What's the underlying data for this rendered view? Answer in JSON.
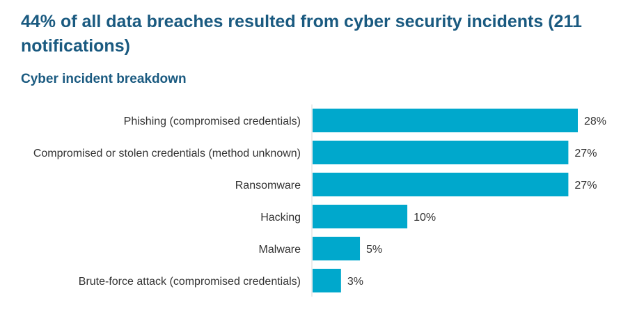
{
  "header": {
    "title": "44% of all data breaches resulted from cyber security incidents (211 notifications)",
    "subtitle": "Cyber incident breakdown"
  },
  "chart_data": {
    "type": "bar",
    "orientation": "horizontal",
    "categories": [
      "Phishing (compromised credentials)",
      "Compromised or stolen credentials (method unknown)",
      "Ransomware",
      "Hacking",
      "Malware",
      "Brute-force attack (compromised credentials)"
    ],
    "values": [
      28,
      27,
      27,
      10,
      5,
      3
    ],
    "value_labels": [
      "28%",
      "27%",
      "27%",
      "10%",
      "5%",
      "3%"
    ],
    "bar_color": "#00a8cc",
    "axis_color": "#d9d9d9",
    "xlim": [
      0,
      28
    ],
    "grid": false,
    "legend": "none"
  }
}
